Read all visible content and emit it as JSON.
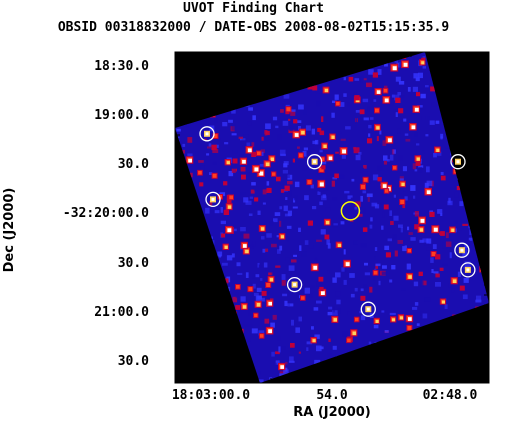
{
  "chart_data": {
    "type": "scatter",
    "title": "UVOT Finding Chart",
    "subtitle": "OBSID 00318832000 / DATE-OBS 2008-08-02T15:15:35.9",
    "xlabel": "RA (J2000)",
    "ylabel": "Dec (J2000)",
    "x_ticks": [
      "18:03:00.0",
      "54.0",
      "02:48.0"
    ],
    "y_ticks": [
      "18:30.0",
      "19:00.0",
      "30.0",
      "-32:20:00.0",
      "30.0",
      "21:00.0",
      "30.0"
    ],
    "grid": false,
    "image_colormap": [
      "#000000",
      "#1a0db0",
      "#3535ff",
      "#c0003a",
      "#ff4020",
      "#ffd060",
      "#ffffff"
    ],
    "source_marker_color": "#ffffff",
    "target_marker_color": "#ffff00",
    "marked_sources": [
      {
        "ra": "18:03:00.2",
        "dec": "-32:19:12"
      },
      {
        "ra": "18:02:54.8",
        "dec": "-32:19:29"
      },
      {
        "ra": "18:02:47.6",
        "dec": "-32:19:29"
      },
      {
        "ra": "18:02:59.9",
        "dec": "-32:19:52"
      },
      {
        "ra": "18:02:47.4",
        "dec": "-32:20:23"
      },
      {
        "ra": "18:02:47.1",
        "dec": "-32:20:35"
      },
      {
        "ra": "18:02:55.8",
        "dec": "-32:20:44"
      },
      {
        "ra": "18:02:52.1",
        "dec": "-32:20:59"
      }
    ],
    "target": {
      "ra": "18:02:53.0",
      "dec": "-32:19:59"
    }
  }
}
